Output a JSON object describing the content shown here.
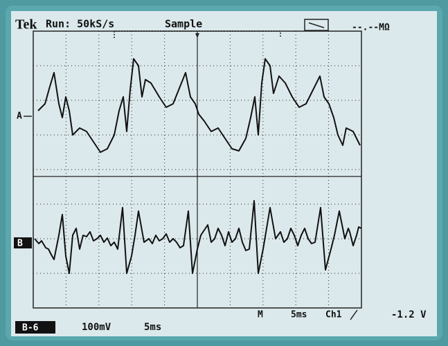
{
  "header": {
    "brand": "Tek",
    "run": "Run: 50kS/s",
    "mode": "Sample",
    "resistance": "--.--MΩ"
  },
  "channels": {
    "a": "A",
    "b": "B"
  },
  "footer": {
    "timebase_marker": "M",
    "timebase": "5ms",
    "trigger_source": "Ch1",
    "trigger_level": "-1.2 V",
    "channel_label": "B-6",
    "scale": "100mV",
    "time_scale": "5ms"
  }
}
